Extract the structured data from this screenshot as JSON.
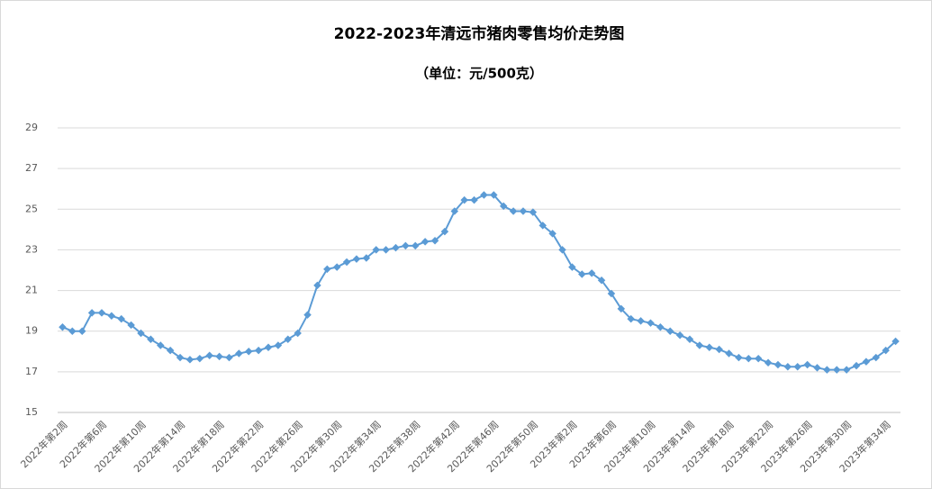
{
  "chart_data": {
    "type": "line",
    "title": "2022-2023年清远市猪肉零售均价走势图",
    "subtitle": "（单位：元/500克）",
    "categories": [
      "2022年第2周",
      null,
      null,
      null,
      "2022年第6周",
      null,
      null,
      null,
      "2022年第10周",
      null,
      null,
      null,
      "2022年第14周",
      null,
      null,
      null,
      "2022年第18周",
      null,
      null,
      null,
      "2022年第22周",
      null,
      null,
      null,
      "2022年第26周",
      null,
      null,
      null,
      "2022年第30周",
      null,
      null,
      null,
      "2022年第34周",
      null,
      null,
      null,
      "2022年第38周",
      null,
      null,
      null,
      "2022年第42周",
      null,
      null,
      null,
      "2022年第46周",
      null,
      null,
      null,
      "2022年第50周",
      null,
      null,
      null,
      "2023年第2周",
      null,
      null,
      null,
      "2023年第6周",
      null,
      null,
      null,
      "2023年第10周",
      null,
      null,
      null,
      "2023年第14周",
      null,
      null,
      null,
      "2023年第18周",
      null,
      null,
      null,
      "2023年第22周",
      null,
      null,
      null,
      "2023年第26周",
      null,
      null,
      null,
      "2023年第30周",
      null,
      null,
      null,
      "2023年第34周",
      null
    ],
    "values": [
      19.2,
      19.0,
      19.0,
      19.9,
      19.9,
      19.75,
      19.6,
      19.3,
      18.9,
      18.6,
      18.3,
      18.05,
      17.7,
      17.6,
      17.65,
      17.8,
      17.75,
      17.7,
      17.9,
      18.0,
      18.05,
      18.2,
      18.3,
      18.6,
      18.9,
      19.8,
      21.25,
      22.05,
      22.15,
      22.4,
      22.55,
      22.6,
      23.0,
      23.0,
      23.1,
      23.2,
      23.2,
      23.4,
      23.45,
      23.9,
      24.9,
      25.45,
      25.45,
      25.7,
      25.7,
      25.15,
      24.9,
      24.9,
      24.85,
      24.2,
      23.8,
      23.0,
      22.15,
      21.8,
      21.85,
      21.5,
      20.85,
      20.1,
      19.6,
      19.5,
      19.4,
      19.2,
      19.0,
      18.8,
      18.6,
      18.3,
      18.2,
      18.1,
      17.9,
      17.7,
      17.65,
      17.65,
      17.45,
      17.35,
      17.25,
      17.25,
      17.35,
      17.2,
      17.1,
      17.1,
      17.1,
      17.3,
      17.5,
      17.7,
      18.05,
      18.5
    ],
    "color": "#5b9bd5",
    "ylim": [
      15,
      29
    ],
    "yticks": [
      15,
      17,
      19,
      21,
      23,
      25,
      27,
      29
    ],
    "grid": true
  }
}
